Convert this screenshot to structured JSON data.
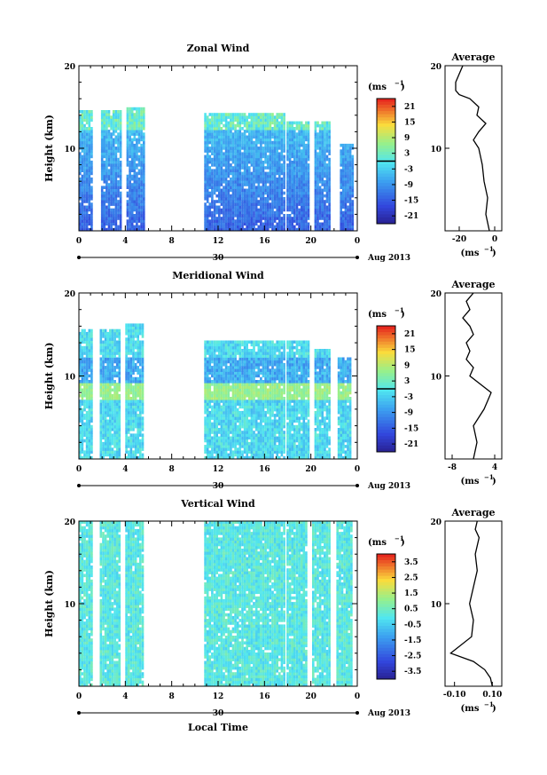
{
  "figure": {
    "xlabel": "Local Time",
    "ylabel": "Height (km)",
    "unit": "(ms",
    "unit_exp": "−1",
    "date_label": "Aug 2013",
    "day_label": "30",
    "avg_title": "Average"
  },
  "chart_data": [
    {
      "type": "heatmap",
      "title": "Zonal Wind",
      "x_ticks": [
        "0",
        "4",
        "8",
        "12",
        "16",
        "20",
        "0"
      ],
      "y_ticks": [
        "10",
        "20"
      ],
      "ylim": [
        0,
        20
      ],
      "xlim": [
        0,
        24
      ],
      "colorbar": {
        "ticks": [
          "21",
          "15",
          "9",
          "3",
          "-3",
          "-9",
          "-15",
          "-21"
        ],
        "min": -24,
        "max": 24,
        "zero_line": true
      },
      "data_segments": [
        {
          "start": 0.0,
          "end": 1.1,
          "top": 14.5
        },
        {
          "start": 1.9,
          "end": 3.6,
          "top": 14.5
        },
        {
          "start": 4.1,
          "end": 5.6,
          "top": 14.8
        },
        {
          "start": 10.8,
          "end": 17.7,
          "top": 14.0
        },
        {
          "start": 17.9,
          "end": 19.7,
          "top": 13.0
        },
        {
          "start": 20.3,
          "end": 21.6,
          "top": 13.0
        },
        {
          "start": 22.5,
          "end": 23.5,
          "top": 10.5
        }
      ],
      "profile": {
        "title": "Average",
        "x_ticks": [
          "-20",
          "0"
        ],
        "xlim": [
          -28,
          4
        ],
        "heights": [
          0,
          2,
          4,
          6,
          8,
          9,
          10,
          11,
          12,
          13,
          14,
          15,
          16,
          16.5,
          17,
          18,
          19,
          20
        ],
        "values": [
          -3,
          -5,
          -4,
          -6,
          -7,
          -8,
          -9,
          -12,
          -9,
          -5,
          -10,
          -9,
          -14,
          -20,
          -22,
          -22,
          -20,
          -18
        ]
      }
    },
    {
      "type": "heatmap",
      "title": "Meridional Wind",
      "x_ticks": [
        "0",
        "4",
        "8",
        "12",
        "16",
        "20",
        "0"
      ],
      "y_ticks": [
        "10",
        "20"
      ],
      "ylim": [
        0,
        20
      ],
      "xlim": [
        0,
        24
      ],
      "colorbar": {
        "ticks": [
          "21",
          "15",
          "9",
          "3",
          "-3",
          "-9",
          "-15",
          "-21"
        ],
        "min": -24,
        "max": 24,
        "zero_line": true
      },
      "data_segments": [
        {
          "start": 0.0,
          "end": 1.2,
          "top": 15.5
        },
        {
          "start": 1.8,
          "end": 3.6,
          "top": 15.5
        },
        {
          "start": 4.0,
          "end": 5.6,
          "top": 16.0
        },
        {
          "start": 10.8,
          "end": 17.7,
          "top": 14.0
        },
        {
          "start": 17.9,
          "end": 19.7,
          "top": 14.0
        },
        {
          "start": 20.3,
          "end": 21.6,
          "top": 13.0
        },
        {
          "start": 22.3,
          "end": 23.3,
          "top": 12.0
        }
      ],
      "profile": {
        "title": "Average",
        "x_ticks": [
          "-8",
          "4"
        ],
        "xlim": [
          -10,
          6
        ],
        "heights": [
          0,
          2,
          4,
          6,
          7,
          8,
          9,
          10,
          11,
          12,
          13,
          14,
          15,
          16,
          17,
          18,
          19,
          20
        ],
        "values": [
          -2,
          -1,
          -2,
          1,
          2,
          3,
          0,
          -3,
          -2,
          -4,
          -3,
          -4,
          -2,
          -3,
          -5,
          -3,
          -4,
          -2
        ]
      }
    },
    {
      "type": "heatmap",
      "title": "Vertical Wind",
      "x_ticks": [
        "0",
        "4",
        "8",
        "12",
        "16",
        "20",
        "0"
      ],
      "y_ticks": [
        "10",
        "20"
      ],
      "ylim": [
        0,
        20
      ],
      "xlim": [
        0,
        24
      ],
      "colorbar": {
        "ticks": [
          "3.5",
          "2.5",
          "1.5",
          "0.5",
          "-0.5",
          "-1.5",
          "-2.5",
          "-3.5"
        ],
        "min": -4,
        "max": 4,
        "zero_line": false
      },
      "data_segments": [
        {
          "start": 0.0,
          "end": 1.1,
          "top": 20.0
        },
        {
          "start": 1.8,
          "end": 3.5,
          "top": 20.0
        },
        {
          "start": 4.0,
          "end": 5.5,
          "top": 20.0
        },
        {
          "start": 10.8,
          "end": 17.6,
          "top": 20.0
        },
        {
          "start": 17.9,
          "end": 19.6,
          "top": 20.0
        },
        {
          "start": 20.1,
          "end": 21.6,
          "top": 20.0
        },
        {
          "start": 22.2,
          "end": 23.5,
          "top": 20.0
        }
      ],
      "profile": {
        "title": "Average",
        "x_ticks": [
          "-0.10",
          "0.10"
        ],
        "xlim": [
          -0.15,
          0.15
        ],
        "heights": [
          0,
          1,
          2,
          3,
          4,
          6,
          8,
          10,
          12,
          14,
          16,
          18,
          19,
          20
        ],
        "values": [
          0.1,
          0.09,
          0.06,
          0.0,
          -0.12,
          -0.01,
          0.0,
          -0.02,
          0.0,
          0.02,
          0.01,
          0.03,
          0.01,
          0.02
        ]
      }
    }
  ]
}
